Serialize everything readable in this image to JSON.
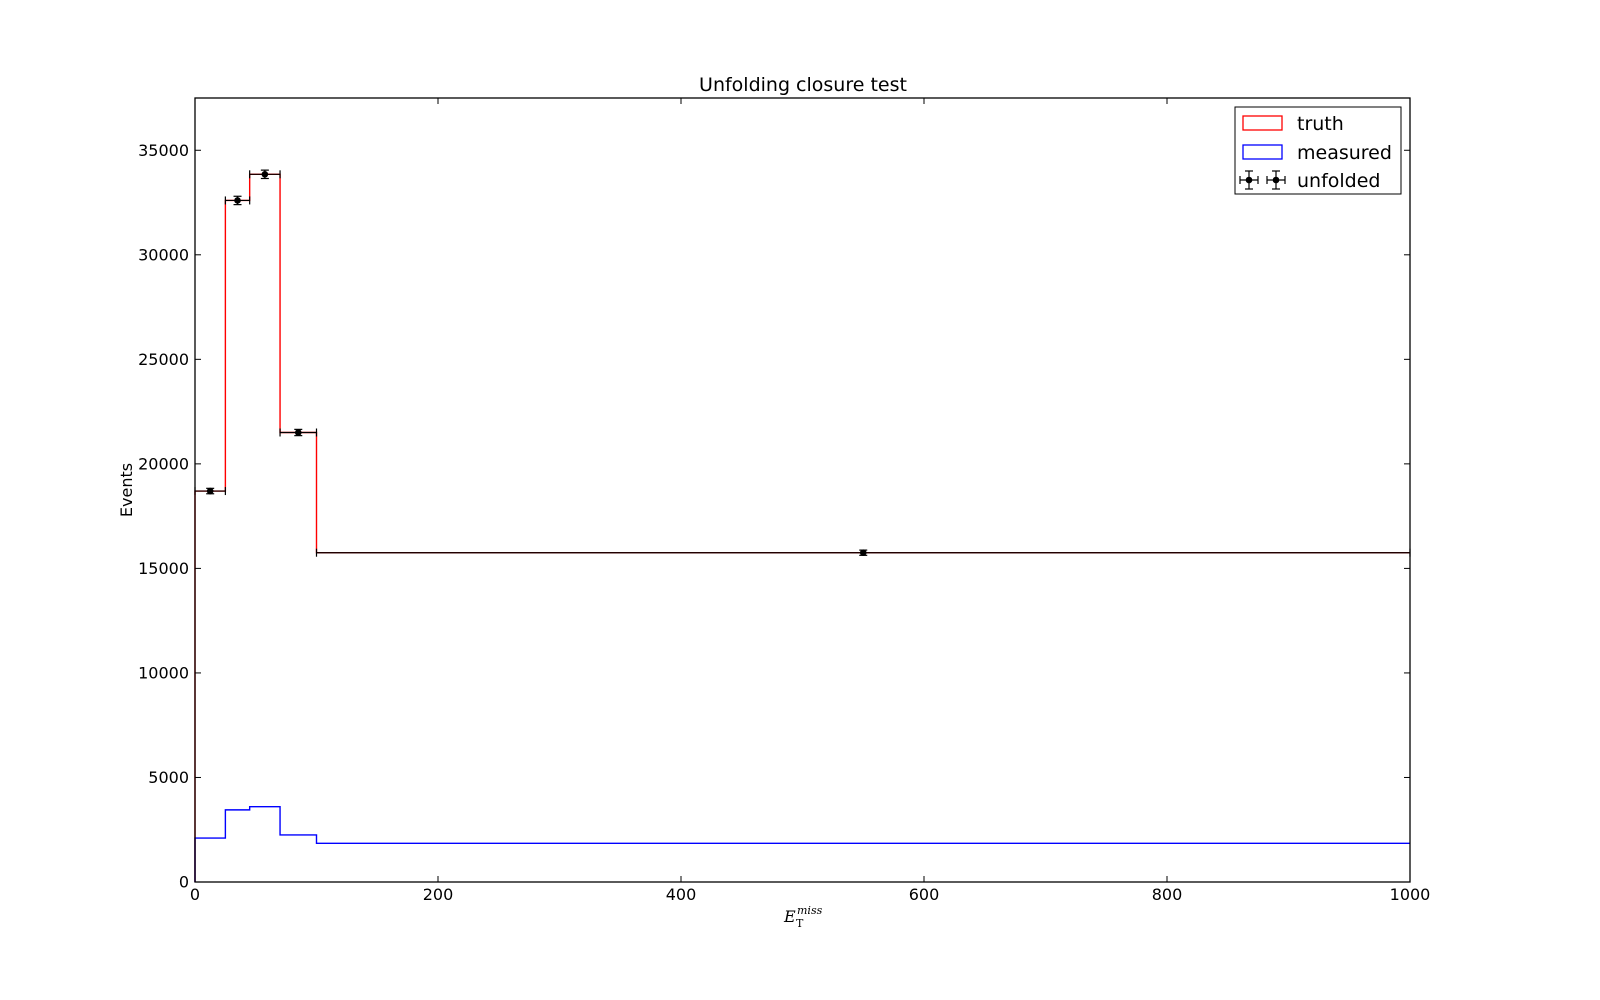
{
  "chart_data": {
    "type": "line",
    "title": "Unfolding closure test",
    "ylabel": "Events",
    "xlabel": {
      "main": "E",
      "sub": "T",
      "sup": "miss"
    },
    "xlim": [
      0,
      1000
    ],
    "ylim": [
      0,
      37500
    ],
    "xticks": [
      0,
      200,
      400,
      600,
      800,
      1000
    ],
    "yticks": [
      0,
      5000,
      10000,
      15000,
      20000,
      25000,
      30000,
      35000
    ],
    "grid": false,
    "legend_position": "top-right",
    "bin_edges": [
      0,
      25,
      45,
      70,
      100,
      1000
    ],
    "series": [
      {
        "name": "truth",
        "kind": "step",
        "color": "#ff0000",
        "values": [
          18700,
          32600,
          33850,
          21500,
          15750
        ]
      },
      {
        "name": "measured",
        "kind": "step",
        "color": "#0000ff",
        "values": [
          2100,
          3450,
          3600,
          2250,
          1850
        ]
      },
      {
        "name": "unfolded",
        "kind": "errorbar",
        "color": "#000000",
        "x": [
          12.5,
          35,
          57.5,
          85,
          550
        ],
        "values": [
          18700,
          32600,
          33850,
          21500,
          15750
        ],
        "yerr": [
          130,
          200,
          200,
          150,
          125
        ]
      }
    ]
  }
}
